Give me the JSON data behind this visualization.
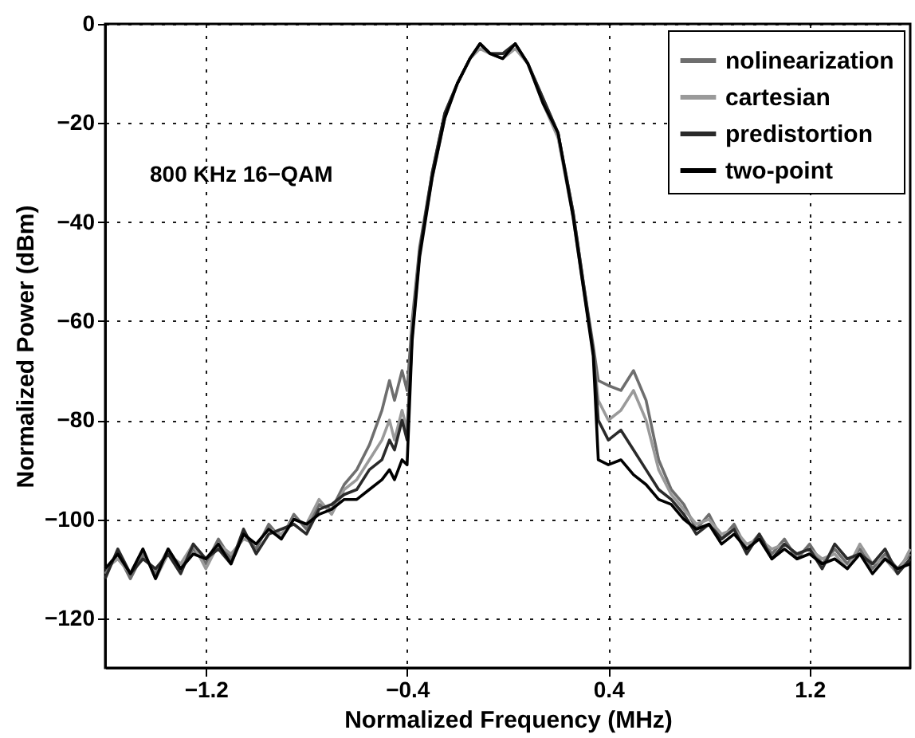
{
  "chart_data": {
    "type": "line",
    "xlabel": "Normalized Frequency (MHz)",
    "ylabel": "Normalized Power (dBm)",
    "annotations": [
      "800 KHz 16−QAM"
    ],
    "xlim": [
      -1.6,
      1.6
    ],
    "ylim": [
      -130,
      0
    ],
    "xticks": [
      {
        "value": -1.2,
        "label": "−1.2"
      },
      {
        "value": -0.4,
        "label": "−0.4"
      },
      0.4,
      1.2
    ],
    "yticks": [
      {
        "value": -120,
        "label": "−120"
      },
      {
        "value": -100,
        "label": "−100"
      },
      {
        "value": -80,
        "label": "−80"
      },
      {
        "value": -60,
        "label": "−60"
      },
      {
        "value": -40,
        "label": "−40"
      },
      {
        "value": -20,
        "label": "−20"
      },
      0
    ],
    "grid": true,
    "legend": "top right",
    "line_style": "solid",
    "x": [
      -1.6,
      -1.55,
      -1.5,
      -1.45,
      -1.4,
      -1.35,
      -1.3,
      -1.25,
      -1.2,
      -1.15,
      -1.1,
      -1.05,
      -1.0,
      -0.95,
      -0.9,
      -0.85,
      -0.8,
      -0.75,
      -0.7,
      -0.65,
      -0.6,
      -0.55,
      -0.5,
      -0.47,
      -0.45,
      -0.42,
      -0.4,
      -0.38,
      -0.35,
      -0.3,
      -0.25,
      -0.2,
      -0.15,
      -0.11,
      -0.07,
      -0.02,
      0.03,
      0.08,
      0.14,
      0.2,
      0.26,
      0.3,
      0.34,
      0.36,
      0.4,
      0.45,
      0.5,
      0.55,
      0.6,
      0.65,
      0.7,
      0.75,
      0.8,
      0.85,
      0.9,
      0.95,
      1.0,
      1.05,
      1.1,
      1.15,
      1.2,
      1.25,
      1.3,
      1.35,
      1.4,
      1.45,
      1.5,
      1.55,
      1.6
    ],
    "series": [
      {
        "name": "nolinearization",
        "color": "#6e6e6e",
        "values": [
          -111,
          -107,
          -112,
          -107,
          -111,
          -106,
          -110,
          -106,
          -109,
          -104,
          -108,
          -103,
          -106,
          -101,
          -104,
          -99,
          -102,
          -97,
          -98,
          -93,
          -90,
          -85,
          -78,
          -72,
          -76,
          -70,
          -74,
          -60,
          -45,
          -30,
          -18,
          -12,
          -7,
          -4,
          -6,
          -6,
          -4,
          -8,
          -15,
          -22,
          -38,
          -52,
          -65,
          -72,
          -73,
          -74,
          -70,
          -76,
          -88,
          -94,
          -97,
          -102,
          -99,
          -104,
          -101,
          -106,
          -103,
          -107,
          -104,
          -108,
          -105,
          -109,
          -106,
          -109,
          -106,
          -110,
          -107,
          -110,
          -107
        ]
      },
      {
        "name": "cartesian",
        "color": "#9a9a9a",
        "values": [
          -110,
          -108,
          -111,
          -106,
          -112,
          -107,
          -109,
          -105,
          -110,
          -105,
          -107,
          -104,
          -105,
          -102,
          -103,
          -100,
          -101,
          -96,
          -99,
          -94,
          -92,
          -88,
          -84,
          -80,
          -84,
          -78,
          -82,
          -62,
          -46,
          -31,
          -19,
          -12,
          -7,
          -5,
          -6,
          -7,
          -5,
          -8,
          -16,
          -23,
          -39,
          -53,
          -66,
          -76,
          -80,
          -78,
          -74,
          -80,
          -90,
          -95,
          -98,
          -101,
          -100,
          -103,
          -102,
          -105,
          -104,
          -106,
          -105,
          -107,
          -106,
          -108,
          -107,
          -110,
          -105,
          -109,
          -108,
          -111,
          -106
        ]
      },
      {
        "name": "predistortion",
        "color": "#2a2a2a",
        "values": [
          -112,
          -106,
          -111,
          -108,
          -110,
          -107,
          -111,
          -105,
          -108,
          -106,
          -109,
          -102,
          -107,
          -103,
          -102,
          -101,
          -103,
          -98,
          -97,
          -95,
          -94,
          -90,
          -88,
          -84,
          -86,
          -80,
          -84,
          -63,
          -46,
          -30,
          -18,
          -12,
          -7,
          -4,
          -6,
          -6,
          -4,
          -8,
          -15,
          -22,
          -38,
          -52,
          -66,
          -80,
          -84,
          -82,
          -86,
          -90,
          -94,
          -96,
          -99,
          -103,
          -101,
          -104,
          -102,
          -107,
          -103,
          -108,
          -105,
          -107,
          -106,
          -110,
          -105,
          -108,
          -107,
          -109,
          -106,
          -111,
          -108
        ]
      },
      {
        "name": "two-point",
        "color": "#000000",
        "values": [
          -110,
          -107,
          -111,
          -106,
          -112,
          -106,
          -110,
          -107,
          -108,
          -105,
          -109,
          -103,
          -105,
          -102,
          -104,
          -100,
          -101,
          -99,
          -98,
          -96,
          -96,
          -94,
          -92,
          -90,
          -92,
          -88,
          -89,
          -64,
          -47,
          -31,
          -19,
          -12,
          -7,
          -4,
          -6,
          -7,
          -4,
          -8,
          -16,
          -22,
          -39,
          -53,
          -67,
          -88,
          -89,
          -88,
          -91,
          -93,
          -96,
          -97,
          -100,
          -102,
          -101,
          -105,
          -103,
          -106,
          -104,
          -108,
          -106,
          -108,
          -107,
          -109,
          -108,
          -110,
          -107,
          -111,
          -108,
          -110,
          -109
        ]
      }
    ]
  }
}
